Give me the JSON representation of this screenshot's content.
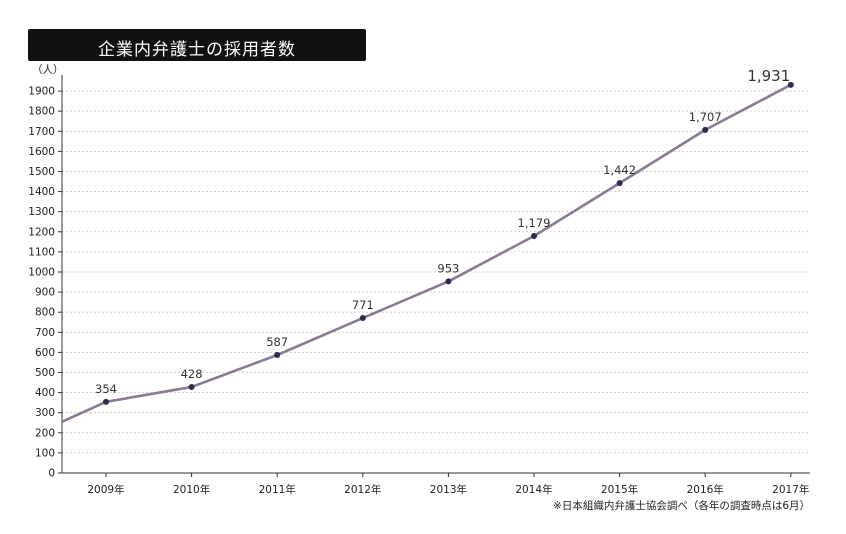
{
  "title": "企業内弁護士の採用者数",
  "note": "※日本組織内弁護士協会調べ（各年の調査時点は6月）",
  "chart_data": {
    "type": "line",
    "title": "企業内弁護士の採用者数",
    "xlabel": "",
    "ylabel": "（人）",
    "categories": [
      "2009年",
      "2010年",
      "2011年",
      "2012年",
      "2013年",
      "2014年",
      "2015年",
      "2016年",
      "2017年"
    ],
    "series": [
      {
        "values": [
          354,
          428,
          587,
          771,
          953,
          1179,
          1442,
          1707,
          1931
        ],
        "data_labels": [
          "354",
          "428",
          "587",
          "771",
          "953",
          "1,179",
          "1,442",
          "1,707",
          "1,931"
        ]
      }
    ],
    "y_ticks": [
      0,
      100,
      200,
      300,
      400,
      500,
      600,
      700,
      800,
      900,
      1000,
      1100,
      1200,
      1300,
      1400,
      1500,
      1600,
      1700,
      1800,
      1900
    ],
    "ylim": [
      0,
      1950
    ],
    "grid": true,
    "line_color": "#8b7a96",
    "marker_color": "#2e2a50",
    "legend": "none"
  }
}
